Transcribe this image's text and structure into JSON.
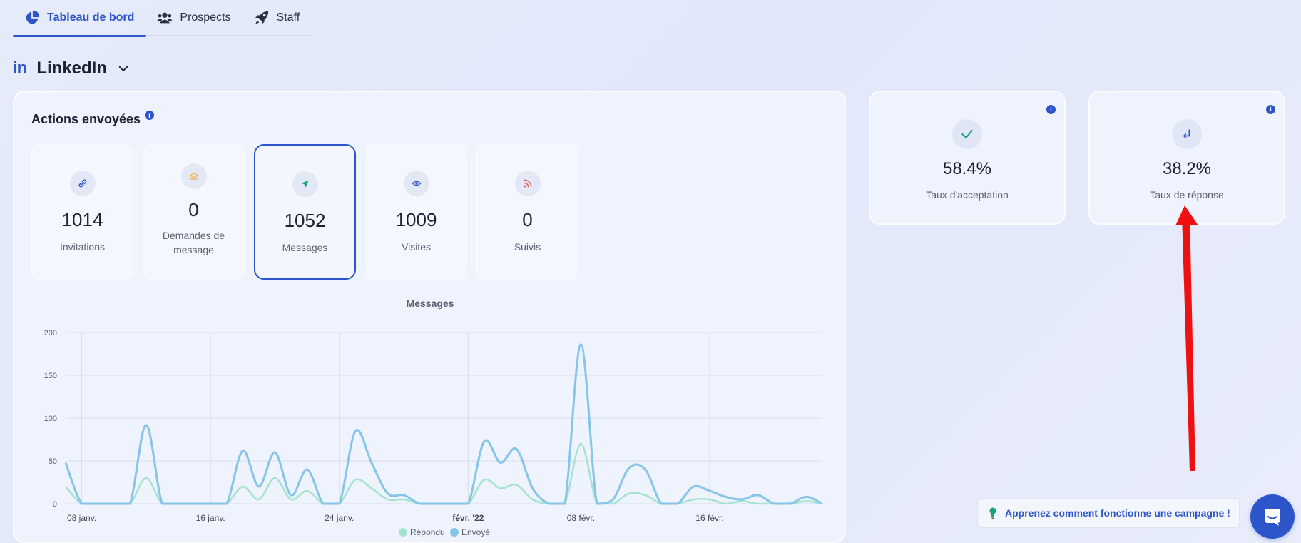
{
  "tabs": [
    {
      "label": "Tableau de bord",
      "icon": "pie-chart-icon",
      "active": true
    },
    {
      "label": "Prospects",
      "icon": "users-icon",
      "active": false
    },
    {
      "label": "Staff",
      "icon": "rocket-icon",
      "active": false
    }
  ],
  "channel": {
    "logo": "in",
    "name": "LinkedIn"
  },
  "actions": {
    "title": "Actions envoyées",
    "info": "i",
    "stats": [
      {
        "value": "1014",
        "label": "Invitations",
        "icon": "link-icon",
        "color": "#2d54c9"
      },
      {
        "value": "0",
        "label": "Demandes de message",
        "icon": "envelope-icon",
        "color": "#f0a93b"
      },
      {
        "value": "1052",
        "label": "Messages",
        "icon": "send-icon",
        "color": "#1aa37a",
        "selected": true
      },
      {
        "value": "1009",
        "label": "Visites",
        "icon": "eye-icon",
        "color": "#2d54c9"
      },
      {
        "value": "0",
        "label": "Suivis",
        "icon": "rss-icon",
        "color": "#e0574f"
      }
    ]
  },
  "rates": [
    {
      "value": "58.4%",
      "label": "Taux d'acceptation",
      "icon": "check-icon",
      "color": "#1aa37a"
    },
    {
      "value": "38.2%",
      "label": "Taux de réponse",
      "icon": "reply-icon",
      "color": "#2d54c9"
    }
  ],
  "help": {
    "label": "Apprenez comment fonctionne une campagne !"
  },
  "chart_data": {
    "type": "line",
    "title": "Messages",
    "xlabel": "",
    "ylabel": "",
    "ylim": [
      0,
      200
    ],
    "yticks": [
      "0",
      "50",
      "100",
      "150",
      "200"
    ],
    "xticks": [
      "08 janv.",
      "16 janv.",
      "24 janv.",
      "févr. '22",
      "08 févr.",
      "16 févr."
    ],
    "xtick_days": [
      0,
      8,
      16,
      24,
      31,
      39
    ],
    "x_days": [
      -1,
      0,
      1,
      2,
      3,
      4,
      5,
      6,
      7,
      8,
      9,
      10,
      11,
      12,
      13,
      14,
      15,
      16,
      17,
      18,
      19,
      20,
      21,
      22,
      23,
      24,
      25,
      26,
      27,
      28,
      29,
      30,
      31,
      32,
      33,
      34,
      35,
      36,
      37,
      38,
      39,
      40,
      41,
      42,
      43,
      44,
      45,
      46
    ],
    "legend": "bottom",
    "colors": {
      "Répondu": "#a4e3cf",
      "Envoyé": "#86c5e8"
    },
    "series": [
      {
        "name": "Répondu",
        "values": [
          20,
          0,
          0,
          0,
          0,
          30,
          0,
          0,
          0,
          0,
          0,
          20,
          5,
          30,
          5,
          15,
          0,
          0,
          28,
          18,
          5,
          5,
          0,
          0,
          0,
          0,
          28,
          18,
          22,
          5,
          0,
          0,
          70,
          0,
          0,
          12,
          10,
          0,
          0,
          5,
          5,
          0,
          3,
          0,
          0,
          0,
          3,
          0
        ]
      },
      {
        "name": "Envoyé",
        "values": [
          48,
          0,
          0,
          0,
          0,
          92,
          0,
          0,
          0,
          0,
          0,
          62,
          20,
          60,
          10,
          40,
          0,
          0,
          85,
          48,
          12,
          10,
          0,
          0,
          0,
          0,
          73,
          48,
          64,
          18,
          0,
          0,
          186,
          0,
          5,
          42,
          40,
          0,
          0,
          20,
          15,
          8,
          5,
          10,
          0,
          0,
          8,
          0
        ]
      }
    ]
  }
}
